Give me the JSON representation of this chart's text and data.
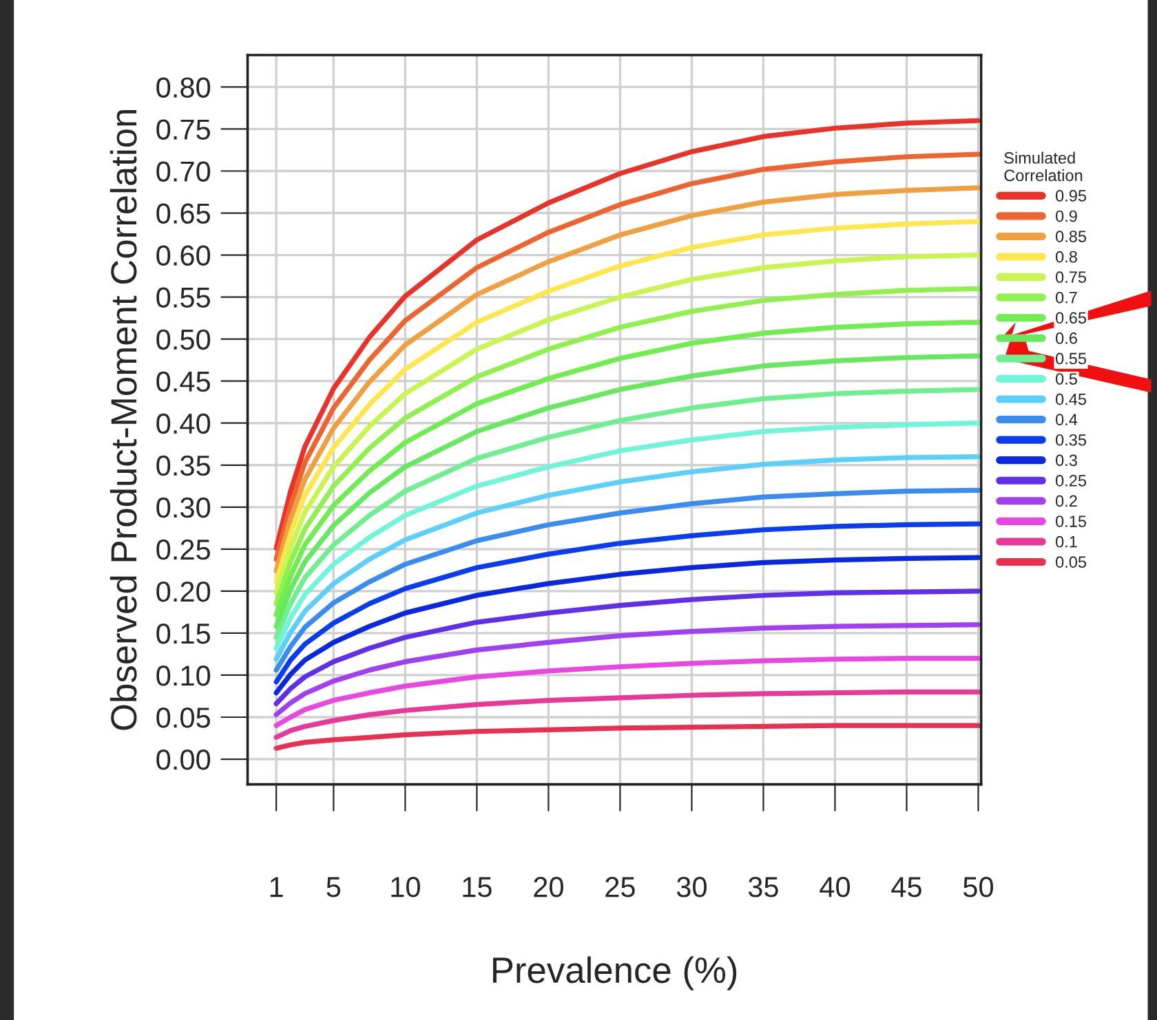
{
  "chart_data": {
    "type": "line",
    "xlabel": "Prevalence (%)",
    "ylabel": "Observed Product-Moment Correlation",
    "legend_title": "Simulated\nCorrelation",
    "x": [
      1,
      2,
      3,
      5,
      7.5,
      10,
      15,
      20,
      25,
      30,
      35,
      40,
      45,
      50
    ],
    "xlim": [
      -1,
      50.2
    ],
    "xticks": [
      1,
      5,
      10,
      15,
      20,
      25,
      30,
      35,
      40,
      45,
      50
    ],
    "ylim": [
      -0.03,
      0.838
    ],
    "yticks": [
      {
        "value": 0,
        "label": "0.00"
      },
      {
        "value": 0.05,
        "label": "0.05"
      },
      {
        "value": 0.1,
        "label": "0.10"
      },
      {
        "value": 0.15,
        "label": "0.15"
      },
      {
        "value": 0.2,
        "label": "0.20"
      },
      {
        "value": 0.25,
        "label": "0.25"
      },
      {
        "value": 0.3,
        "label": "0.30"
      },
      {
        "value": 0.35,
        "label": "0.35"
      },
      {
        "value": 0.4,
        "label": "0.40"
      },
      {
        "value": 0.45,
        "label": "0.45"
      },
      {
        "value": 0.5,
        "label": "0.50"
      },
      {
        "value": 0.55,
        "label": "0.55"
      },
      {
        "value": 0.6,
        "label": "0.60"
      },
      {
        "value": 0.65,
        "label": "0.65"
      },
      {
        "value": 0.7,
        "label": "0.70"
      },
      {
        "value": 0.75,
        "label": "0.75"
      },
      {
        "value": 0.8,
        "label": "0.80"
      }
    ],
    "grid": true,
    "legend": "right",
    "marker": "none",
    "line_style": "solid",
    "series": [
      {
        "name": "0.95",
        "color": "#e8332a",
        "values": [
          0.251,
          0.319,
          0.372,
          0.441,
          0.502,
          0.551,
          0.618,
          0.662,
          0.697,
          0.723,
          0.741,
          0.751,
          0.757,
          0.76
        ]
      },
      {
        "name": "0.9",
        "color": "#ee6430",
        "values": [
          0.238,
          0.302,
          0.353,
          0.418,
          0.475,
          0.522,
          0.585,
          0.627,
          0.66,
          0.685,
          0.702,
          0.711,
          0.717,
          0.72
        ]
      },
      {
        "name": "0.85",
        "color": "#f0a040",
        "values": [
          0.224,
          0.286,
          0.333,
          0.394,
          0.449,
          0.493,
          0.553,
          0.592,
          0.624,
          0.647,
          0.663,
          0.672,
          0.677,
          0.68
        ]
      },
      {
        "name": "0.8",
        "color": "#fde74c",
        "values": [
          0.211,
          0.269,
          0.314,
          0.371,
          0.422,
          0.464,
          0.52,
          0.557,
          0.587,
          0.609,
          0.624,
          0.632,
          0.637,
          0.64
        ]
      },
      {
        "name": "0.75",
        "color": "#c8f550",
        "values": [
          0.198,
          0.252,
          0.294,
          0.348,
          0.396,
          0.435,
          0.488,
          0.523,
          0.55,
          0.571,
          0.585,
          0.593,
          0.598,
          0.6
        ]
      },
      {
        "name": "0.7",
        "color": "#90f050",
        "values": [
          0.185,
          0.235,
          0.274,
          0.325,
          0.37,
          0.406,
          0.455,
          0.488,
          0.514,
          0.533,
          0.546,
          0.553,
          0.558,
          0.56
        ]
      },
      {
        "name": "0.65",
        "color": "#70ee50",
        "values": [
          0.172,
          0.218,
          0.255,
          0.302,
          0.343,
          0.377,
          0.423,
          0.453,
          0.477,
          0.495,
          0.507,
          0.514,
          0.518,
          0.52
        ]
      },
      {
        "name": "0.6",
        "color": "#68e860",
        "values": [
          0.158,
          0.202,
          0.235,
          0.278,
          0.317,
          0.348,
          0.39,
          0.418,
          0.44,
          0.456,
          0.468,
          0.474,
          0.478,
          0.48
        ]
      },
      {
        "name": "0.55",
        "color": "#70ee90",
        "values": [
          0.145,
          0.185,
          0.216,
          0.255,
          0.29,
          0.319,
          0.358,
          0.383,
          0.403,
          0.418,
          0.429,
          0.435,
          0.438,
          0.44
        ]
      },
      {
        "name": "0.5",
        "color": "#70f5d8",
        "values": [
          0.132,
          0.168,
          0.196,
          0.232,
          0.264,
          0.29,
          0.325,
          0.348,
          0.367,
          0.38,
          0.39,
          0.395,
          0.398,
          0.4
        ]
      },
      {
        "name": "0.45",
        "color": "#5cd0f8",
        "values": [
          0.119,
          0.151,
          0.176,
          0.209,
          0.238,
          0.261,
          0.293,
          0.314,
          0.33,
          0.342,
          0.351,
          0.356,
          0.359,
          0.36
        ]
      },
      {
        "name": "0.4",
        "color": "#3a8cf0",
        "values": [
          0.106,
          0.134,
          0.157,
          0.186,
          0.211,
          0.232,
          0.26,
          0.279,
          0.293,
          0.304,
          0.312,
          0.316,
          0.319,
          0.32
        ]
      },
      {
        "name": "0.35",
        "color": "#0a3cf0",
        "values": [
          0.092,
          0.118,
          0.137,
          0.162,
          0.185,
          0.203,
          0.228,
          0.244,
          0.257,
          0.266,
          0.273,
          0.277,
          0.279,
          0.28
        ]
      },
      {
        "name": "0.3",
        "color": "#0a28e0",
        "values": [
          0.079,
          0.101,
          0.118,
          0.139,
          0.158,
          0.174,
          0.195,
          0.209,
          0.22,
          0.228,
          0.234,
          0.237,
          0.239,
          0.24
        ]
      },
      {
        "name": "0.25",
        "color": "#6030e8",
        "values": [
          0.066,
          0.084,
          0.098,
          0.116,
          0.132,
          0.145,
          0.163,
          0.174,
          0.183,
          0.19,
          0.195,
          0.198,
          0.199,
          0.2
        ]
      },
      {
        "name": "0.2",
        "color": "#a040f0",
        "values": [
          0.053,
          0.067,
          0.078,
          0.093,
          0.106,
          0.116,
          0.13,
          0.139,
          0.147,
          0.152,
          0.156,
          0.158,
          0.159,
          0.16
        ]
      },
      {
        "name": "0.15",
        "color": "#e848e0",
        "values": [
          0.04,
          0.05,
          0.059,
          0.07,
          0.079,
          0.087,
          0.098,
          0.105,
          0.11,
          0.114,
          0.117,
          0.119,
          0.12,
          0.12
        ]
      },
      {
        "name": "0.1",
        "color": "#e83898",
        "values": [
          0.026,
          0.034,
          0.039,
          0.046,
          0.053,
          0.058,
          0.065,
          0.07,
          0.073,
          0.076,
          0.078,
          0.079,
          0.08,
          0.08
        ]
      },
      {
        "name": "0.05",
        "color": "#e83050",
        "values": [
          0.013,
          0.017,
          0.02,
          0.023,
          0.026,
          0.029,
          0.033,
          0.035,
          0.037,
          0.038,
          0.039,
          0.04,
          0.04,
          0.04
        ]
      }
    ]
  }
}
